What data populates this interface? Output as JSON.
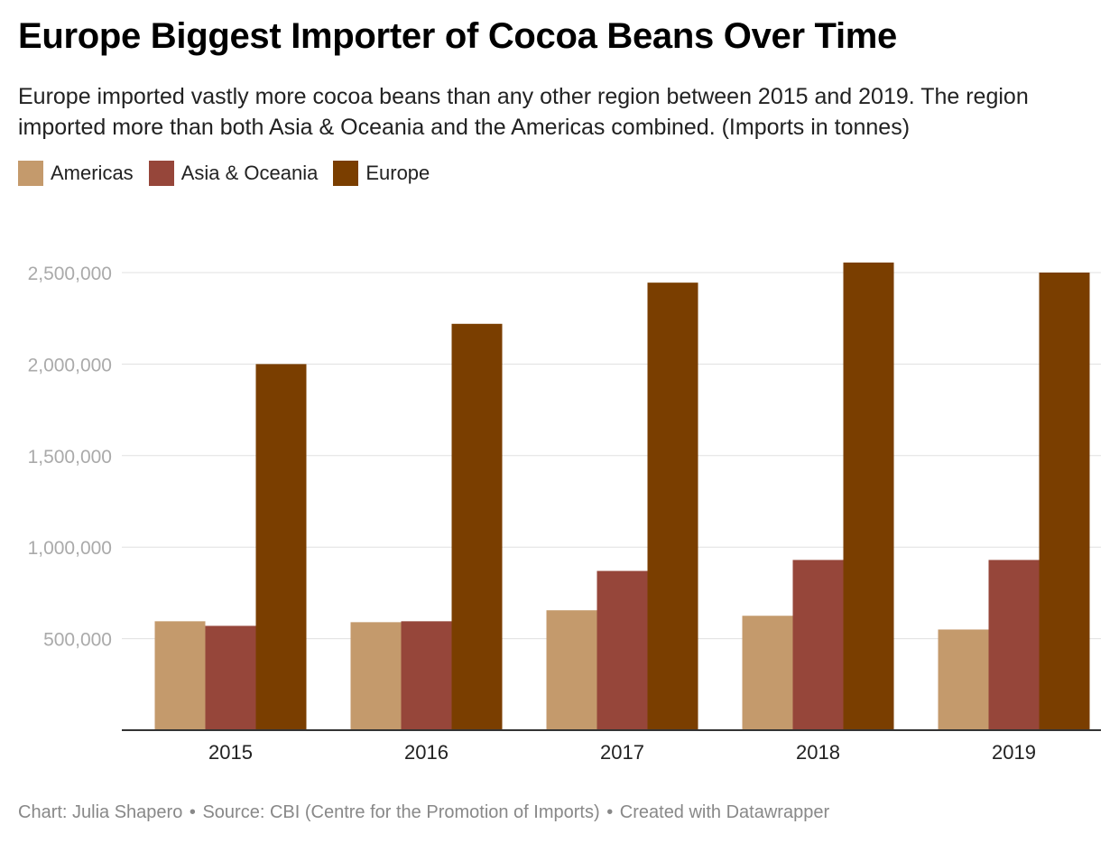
{
  "title": "Europe Biggest Importer of Cocoa Beans Over Time",
  "subtitle": "Europe imported vastly more cocoa beans than any other region between 2015 and 2019. The region imported more than both Asia & Oceania and the Americas combined. (Imports in tonnes)",
  "footer": {
    "chart_by": "Chart: Julia Shapero",
    "source": "Source: CBI (Centre for the Promotion of Imports)",
    "created": "Created with Datawrapper",
    "separator": "•"
  },
  "chart_data": {
    "type": "bar",
    "categories": [
      "2015",
      "2016",
      "2017",
      "2018",
      "2019"
    ],
    "series": [
      {
        "name": "Americas",
        "color": "#c49a6c",
        "values": [
          595000,
          590000,
          655000,
          625000,
          550000
        ]
      },
      {
        "name": "Asia & Oceania",
        "color": "#96463a",
        "values": [
          570000,
          595000,
          870000,
          930000,
          930000
        ]
      },
      {
        "name": "Europe",
        "color": "#7a3e00",
        "values": [
          2000000,
          2220000,
          2445000,
          2555000,
          2500000
        ]
      }
    ],
    "yticks": [
      "500,000",
      "1,000,000",
      "1,500,000",
      "2,000,000",
      "2,500,000"
    ],
    "ytick_values": [
      500000,
      1000000,
      1500000,
      2000000,
      2500000
    ],
    "ylim": [
      0,
      2500000
    ],
    "grid": true,
    "legend_position": "top-left"
  }
}
